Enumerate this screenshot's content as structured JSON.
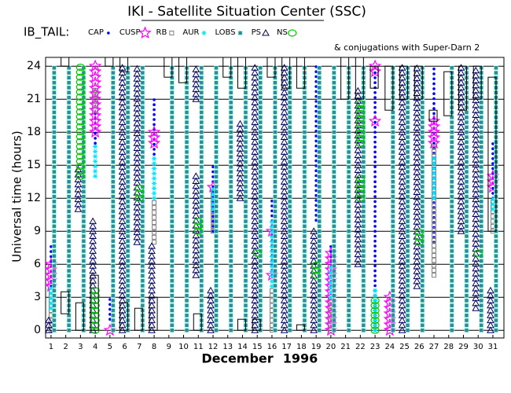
{
  "chart_data": {
    "type": "timeline",
    "title": "IKI - Satellite Situation Center (SSC)",
    "legend_title": "IB_TAIL:",
    "xlabel": "December",
    "year_label": "1996",
    "ylabel": "Universal time (hours)",
    "xlim": [
      0.63,
      31.75
    ],
    "ylim": [
      -0.7,
      24.8
    ],
    "xticks": [
      1,
      2,
      3,
      4,
      5,
      6,
      7,
      8,
      9,
      10,
      11,
      12,
      13,
      14,
      15,
      16,
      17,
      18,
      19,
      20,
      21,
      22,
      23,
      24,
      25,
      26,
      27,
      28,
      29,
      30,
      31
    ],
    "yticks": [
      0,
      3,
      6,
      9,
      12,
      15,
      18,
      21,
      24
    ],
    "grid": true,
    "series": [
      {
        "name": "CAP",
        "color": "#0000ff",
        "marker": "dot",
        "intervals": [
          [
            1,
            4,
            8
          ],
          [
            4,
            17,
            20
          ],
          [
            5,
            1,
            3
          ],
          [
            8,
            16,
            21
          ],
          [
            12,
            9,
            15
          ],
          [
            16,
            5,
            12
          ],
          [
            19,
            10,
            24
          ],
          [
            20,
            4,
            8
          ],
          [
            23,
            0,
            24
          ],
          [
            27,
            8,
            24
          ],
          [
            31,
            12,
            17
          ]
        ]
      },
      {
        "name": "CUSP",
        "color": "#ff00ff",
        "marker": "star",
        "intervals": [
          [
            1,
            4,
            6
          ],
          [
            4,
            18,
            24
          ],
          [
            5,
            0,
            0
          ],
          [
            8,
            17,
            18
          ],
          [
            12,
            13,
            13
          ],
          [
            16,
            5,
            5
          ],
          [
            16,
            9,
            9
          ],
          [
            20,
            0,
            7
          ],
          [
            23,
            19,
            19
          ],
          [
            23,
            23.5,
            24
          ],
          [
            24,
            0,
            3
          ],
          [
            27,
            17,
            19
          ],
          [
            31,
            13,
            14
          ]
        ]
      },
      {
        "name": "RB",
        "color": "#808080",
        "marker": "square",
        "intervals": [
          [
            1,
            0,
            4
          ],
          [
            4,
            20,
            22
          ],
          [
            8,
            8,
            12
          ],
          [
            12,
            9,
            13
          ],
          [
            16,
            0,
            4
          ],
          [
            20,
            0,
            3
          ],
          [
            27,
            5,
            17
          ],
          [
            31,
            9,
            12
          ]
        ]
      },
      {
        "name": "AUR",
        "color": "#00e5ff",
        "marker": "asterisk",
        "intervals": [
          [
            1,
            2,
            4
          ],
          [
            4,
            14,
            17
          ],
          [
            8,
            12,
            16
          ],
          [
            12,
            11,
            13
          ],
          [
            16,
            4,
            10
          ],
          [
            20,
            3,
            6
          ],
          [
            23,
            0,
            4
          ],
          [
            27,
            12,
            16
          ],
          [
            31,
            11,
            12
          ]
        ]
      },
      {
        "name": "LOBS",
        "color": "#2e8b9a",
        "marker": "fsquare",
        "intervals": [
          [
            1,
            0,
            24
          ],
          [
            2,
            0,
            24
          ],
          [
            3,
            0,
            24
          ],
          [
            5,
            0,
            24
          ],
          [
            6,
            0,
            24
          ],
          [
            7,
            0,
            24
          ],
          [
            9,
            0,
            24
          ],
          [
            10,
            0,
            24
          ],
          [
            11,
            0,
            24
          ],
          [
            12,
            0,
            24
          ],
          [
            13,
            0,
            24
          ],
          [
            14,
            0,
            24
          ],
          [
            15,
            0,
            24
          ],
          [
            16,
            0,
            24
          ],
          [
            17,
            0,
            24
          ],
          [
            18,
            0,
            24
          ],
          [
            19,
            0,
            24
          ],
          [
            20,
            0,
            24
          ],
          [
            21,
            0,
            24
          ],
          [
            22,
            0,
            24
          ],
          [
            24,
            0,
            24
          ],
          [
            25,
            0,
            24
          ],
          [
            26,
            0,
            24
          ],
          [
            28,
            0,
            24
          ],
          [
            29,
            0,
            24
          ],
          [
            30,
            0,
            24
          ],
          [
            31,
            0,
            24
          ]
        ]
      },
      {
        "name": "PS",
        "color": "#000060",
        "marker": "triangle",
        "intervals": [
          [
            1,
            0,
            1
          ],
          [
            3,
            11,
            15
          ],
          [
            4,
            0,
            10
          ],
          [
            6,
            0,
            24
          ],
          [
            7,
            8,
            24
          ],
          [
            8,
            0,
            8
          ],
          [
            11,
            5,
            14
          ],
          [
            11,
            21,
            24
          ],
          [
            12,
            0,
            4
          ],
          [
            14,
            12,
            19
          ],
          [
            15,
            0,
            24
          ],
          [
            17,
            0,
            24
          ],
          [
            19,
            0,
            9
          ],
          [
            22,
            6,
            22
          ],
          [
            25,
            0,
            24
          ],
          [
            26,
            4,
            24
          ],
          [
            29,
            9,
            24
          ],
          [
            30,
            2,
            24
          ],
          [
            31,
            0,
            4
          ]
        ]
      },
      {
        "name": "NS",
        "color": "#00c800",
        "marker": "circle",
        "intervals": [
          [
            3,
            14,
            24
          ],
          [
            4,
            0,
            4
          ],
          [
            7,
            12,
            13
          ],
          [
            11,
            9,
            10
          ],
          [
            15,
            7,
            7
          ],
          [
            19,
            5,
            6
          ],
          [
            22,
            12,
            14
          ],
          [
            22,
            17,
            21
          ],
          [
            23,
            0,
            3
          ],
          [
            26,
            8,
            9
          ],
          [
            30,
            7,
            7
          ]
        ]
      },
      {
        "name": "& conjugations with Super-Darn 2",
        "color": "#000000",
        "marker": "box",
        "intervals": [
          [
            2,
            1.5,
            3.5
          ],
          [
            2,
            24,
            24.8
          ],
          [
            3,
            0,
            2.5
          ],
          [
            4,
            0,
            5
          ],
          [
            5,
            24,
            24.8
          ],
          [
            6,
            0,
            2.5
          ],
          [
            6,
            23.5,
            24.8
          ],
          [
            7,
            0,
            2
          ],
          [
            8,
            0,
            3
          ],
          [
            9,
            23,
            24.8
          ],
          [
            10,
            22.5,
            24.8
          ],
          [
            11,
            0,
            1.5
          ],
          [
            13,
            23,
            24.8
          ],
          [
            14,
            0,
            1
          ],
          [
            14,
            22,
            24.8
          ],
          [
            15,
            0,
            1
          ],
          [
            16,
            23,
            24.8
          ],
          [
            17,
            22,
            24.8
          ],
          [
            18,
            0,
            0.5
          ],
          [
            18,
            22,
            24.8
          ],
          [
            21,
            21,
            24.8
          ],
          [
            22,
            21,
            24.8
          ],
          [
            23,
            22,
            24
          ],
          [
            24,
            20,
            24
          ],
          [
            25,
            21,
            24
          ],
          [
            26,
            21,
            24
          ],
          [
            27,
            19,
            20
          ],
          [
            28,
            19.5,
            23.5
          ],
          [
            29,
            20,
            24
          ],
          [
            30,
            21,
            24
          ],
          [
            31,
            9,
            23
          ]
        ]
      }
    ]
  }
}
